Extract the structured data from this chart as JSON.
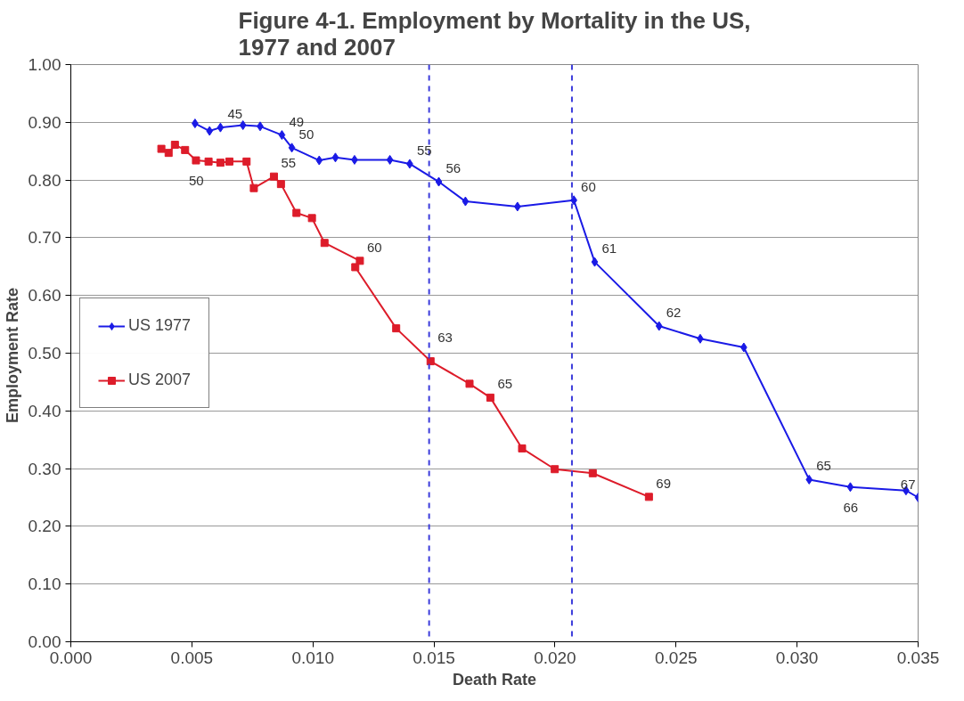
{
  "chart_data": {
    "type": "line",
    "title": "Figure 4-1. Employment by Mortality in the US,\n1977 and 2007",
    "xlabel": "Death Rate",
    "ylabel": "Employment  Rate",
    "xlim": [
      0,
      0.035
    ],
    "ylim": [
      0,
      1
    ],
    "xticks": [
      {
        "value": 0,
        "label": "0.000"
      },
      {
        "value": 0.005,
        "label": "0.005"
      },
      {
        "value": 0.01,
        "label": "0.010"
      },
      {
        "value": 0.015,
        "label": "0.015"
      },
      {
        "value": 0.02,
        "label": "0.020"
      },
      {
        "value": 0.025,
        "label": "0.025"
      },
      {
        "value": 0.03,
        "label": "0.030"
      },
      {
        "value": 0.035,
        "label": "0.035"
      }
    ],
    "yticks": [
      {
        "value": 0,
        "label": "0.00"
      },
      {
        "value": 0.1,
        "label": "0.10"
      },
      {
        "value": 0.2,
        "label": "0.20"
      },
      {
        "value": 0.3,
        "label": "0.30"
      },
      {
        "value": 0.4,
        "label": "0.40"
      },
      {
        "value": 0.5,
        "label": "0.50"
      },
      {
        "value": 0.6,
        "label": "0.60"
      },
      {
        "value": 0.7,
        "label": "0.70"
      },
      {
        "value": 0.8,
        "label": "0.80"
      },
      {
        "value": 0.9,
        "label": "0.90"
      },
      {
        "value": 1,
        "label": "1.00"
      }
    ],
    "grid": "y",
    "legend": "left",
    "line_style": "solid",
    "series": [
      {
        "name": "US 1977",
        "color": "#1a1ae6",
        "marker": "diamond",
        "x": [
          0.00513,
          0.00573,
          0.00618,
          0.00711,
          0.00782,
          0.00872,
          0.00913,
          0.01026,
          0.01093,
          0.01172,
          0.01318,
          0.014,
          0.0152,
          0.0163,
          0.01845,
          0.02078,
          0.02164,
          0.0243,
          0.026,
          0.0278,
          0.0305,
          0.0322,
          0.0345,
          0.035
        ],
        "values": [
          0.898,
          0.885,
          0.891,
          0.895,
          0.893,
          0.878,
          0.856,
          0.834,
          0.839,
          0.835,
          0.835,
          0.828,
          0.797,
          0.763,
          0.754,
          0.765,
          0.658,
          0.547,
          0.525,
          0.51,
          0.281,
          0.268,
          0.262,
          0.25
        ]
      },
      {
        "name": "US 2007",
        "color": "#dd1c2a",
        "marker": "square",
        "x": [
          0.00374,
          0.00404,
          0.0043,
          0.00472,
          0.00517,
          0.00569,
          0.00618,
          0.00655,
          0.00726,
          0.00756,
          0.00839,
          0.00868,
          0.00932,
          0.00996,
          0.01048,
          0.01194,
          0.01175,
          0.01344,
          0.01486,
          0.01647,
          0.01733,
          0.01864,
          0.01999,
          0.02156,
          0.02388
        ],
        "values": [
          0.854,
          0.847,
          0.861,
          0.852,
          0.834,
          0.832,
          0.83,
          0.832,
          0.832,
          0.786,
          0.806,
          0.793,
          0.743,
          0.734,
          0.691,
          0.66,
          0.649,
          0.543,
          0.486,
          0.447,
          0.423,
          0.335,
          0.299,
          0.292,
          0.251
        ]
      }
    ],
    "ref_lines": [
      {
        "axis": "x",
        "value": 0.0148,
        "color": "#3b3bdb",
        "line_style": "dashed"
      },
      {
        "axis": "x",
        "value": 0.0207,
        "color": "#3b3bdb",
        "line_style": "dashed"
      }
    ],
    "annotations": [
      {
        "text": "45",
        "x": 0.00618,
        "y": 0.891
      },
      {
        "text": "49",
        "x": 0.00872,
        "y": 0.878
      },
      {
        "text": "50",
        "x": 0.00913,
        "y": 0.856
      },
      {
        "text": "55",
        "x": 0.014,
        "y": 0.828
      },
      {
        "text": "56",
        "x": 0.0152,
        "y": 0.797
      },
      {
        "text": "60",
        "x": 0.02078,
        "y": 0.765
      },
      {
        "text": "61",
        "x": 0.02164,
        "y": 0.658
      },
      {
        "text": "62",
        "x": 0.0243,
        "y": 0.547
      },
      {
        "text": "65",
        "x": 0.0305,
        "y": 0.281
      },
      {
        "text": "66",
        "x": 0.0322,
        "y": 0.268
      },
      {
        "text": "67",
        "x": 0.035,
        "y": 0.25
      },
      {
        "text": "50",
        "x": 0.00517,
        "y": 0.834
      },
      {
        "text": "55",
        "x": 0.00839,
        "y": 0.806
      },
      {
        "text": "60",
        "x": 0.01194,
        "y": 0.66
      },
      {
        "text": "63",
        "x": 0.01486,
        "y": 0.486
      },
      {
        "text": "65",
        "x": 0.01733,
        "y": 0.423
      },
      {
        "text": "69",
        "x": 0.02388,
        "y": 0.251
      }
    ]
  }
}
